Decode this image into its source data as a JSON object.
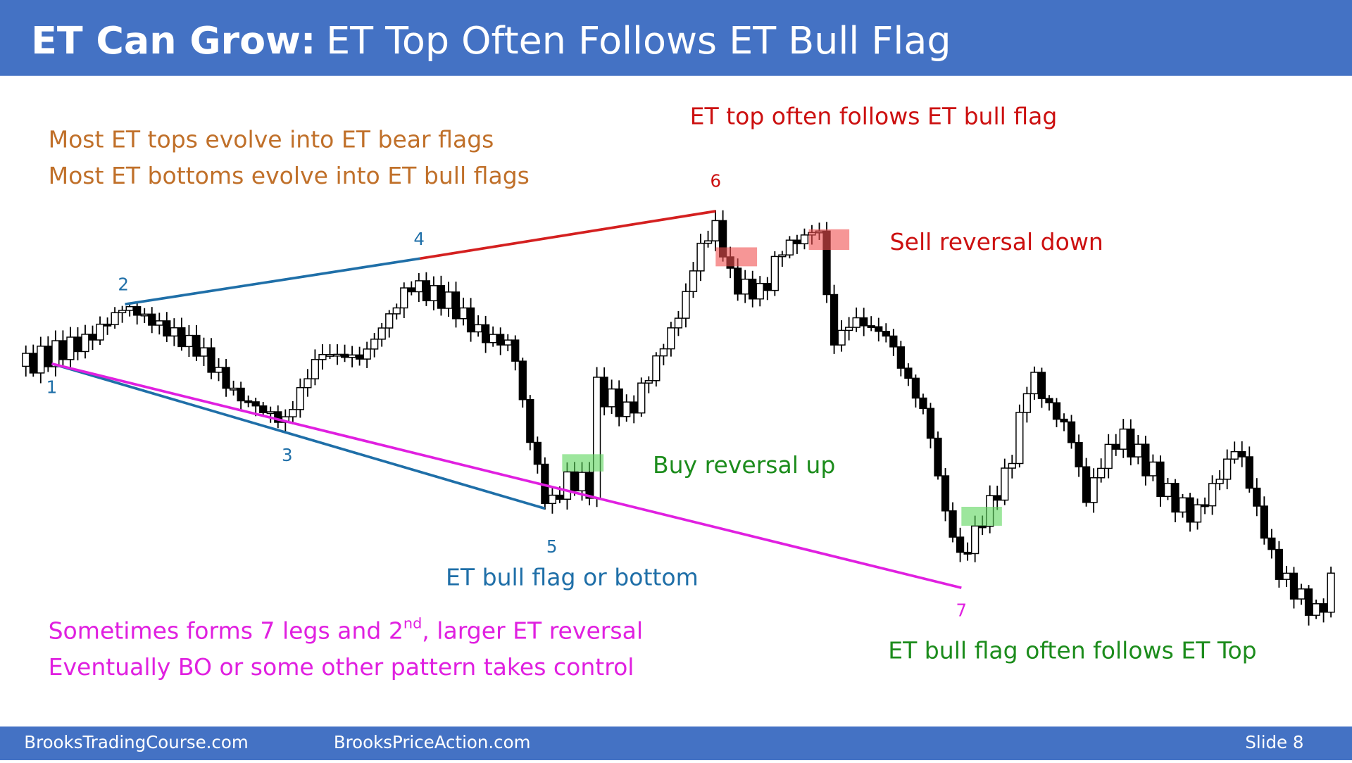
{
  "header": {
    "title_bold": "ET Can Grow:",
    "title": "ET Top Often Follows ET Bull Flag"
  },
  "notes": {
    "tops": "Most ET tops evolve into ET bear flags",
    "bottoms": "Most ET bottoms evolve into ET bull flags",
    "top_follows": "ET top often follows ET bull flag",
    "sell": "Sell reversal down",
    "buy": "Buy reversal up",
    "bull_flag": "ET bull flag or bottom",
    "legs_a": "Sometimes forms 7 legs and 2",
    "legs_sup": "nd",
    "legs_b": ", larger ET reversal",
    "eventually": "Eventually BO or some other pattern takes control",
    "follows_top": "ET bull flag often follows ET Top"
  },
  "labels": [
    "1",
    "2",
    "3",
    "4",
    "5",
    "6",
    "7"
  ],
  "footer": {
    "left": "BrooksTradingCourse.com",
    "center": "BrooksPriceAction.com",
    "slide": "Slide 8"
  }
}
